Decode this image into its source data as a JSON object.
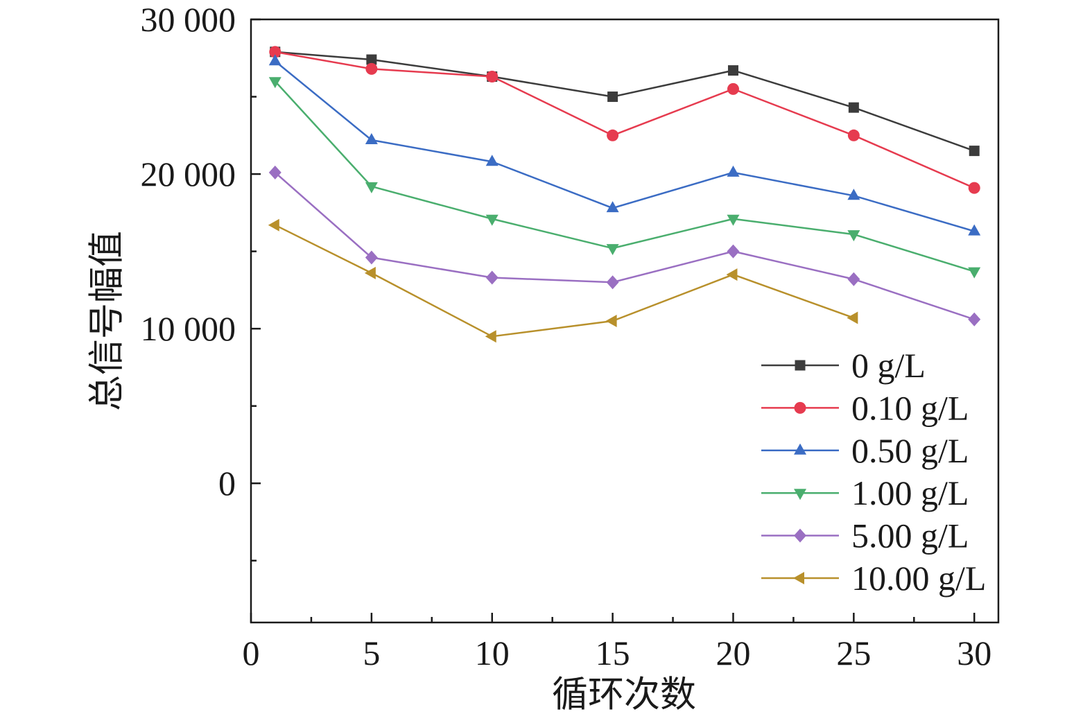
{
  "chart_data": {
    "type": "line",
    "xlabel": "循环次数",
    "ylabel": "总信号幅值",
    "xlim": [
      0,
      31
    ],
    "ylim": [
      -9000,
      30000
    ],
    "x_ticks": [
      0,
      5,
      10,
      15,
      20,
      25,
      30
    ],
    "x_tick_labels": [
      "0",
      "5",
      "10",
      "15",
      "20",
      "25",
      "30"
    ],
    "x_minor_ticks": [
      2.5,
      7.5,
      12.5,
      17.5,
      22.5,
      27.5
    ],
    "y_ticks": [
      0,
      10000,
      20000,
      30000
    ],
    "y_tick_labels": [
      "0",
      "10 000",
      "20 000",
      "30 000"
    ],
    "y_minor_ticks": [
      -5000,
      5000,
      15000,
      25000
    ],
    "grid": false,
    "legend_position": "lower-right",
    "series": [
      {
        "name": "0 g/L",
        "color": "#3c3c3c",
        "marker": "square",
        "x": [
          1,
          5,
          10,
          15,
          20,
          25,
          30
        ],
        "y": [
          27900,
          27400,
          26300,
          25000,
          26700,
          24300,
          21500
        ]
      },
      {
        "name": "0.10 g/L",
        "color": "#e63b4f",
        "marker": "circle",
        "x": [
          1,
          5,
          10,
          15,
          20,
          25,
          30
        ],
        "y": [
          27900,
          26800,
          26300,
          22500,
          25500,
          22500,
          19100
        ]
      },
      {
        "name": "0.50 g/L",
        "color": "#3b6cc4",
        "marker": "triangle-up",
        "x": [
          1,
          5,
          10,
          15,
          20,
          25,
          30
        ],
        "y": [
          27300,
          22200,
          20800,
          17800,
          20100,
          18600,
          16300
        ]
      },
      {
        "name": "1.00 g/L",
        "color": "#4aae6e",
        "marker": "triangle-down",
        "x": [
          1,
          5,
          10,
          15,
          20,
          25,
          30
        ],
        "y": [
          26000,
          19200,
          17100,
          15200,
          17100,
          16100,
          13700
        ]
      },
      {
        "name": "5.00 g/L",
        "color": "#9a6fc2",
        "marker": "diamond",
        "x": [
          1,
          5,
          10,
          15,
          20,
          25,
          30
        ],
        "y": [
          20100,
          14600,
          13300,
          13000,
          15000,
          13200,
          10600
        ]
      },
      {
        "name": "10.00 g/L",
        "color": "#b8902b",
        "marker": "triangle-left",
        "x": [
          1,
          5,
          10,
          15,
          20,
          25
        ],
        "y": [
          16700,
          13600,
          9500,
          10500,
          13500,
          10700
        ]
      }
    ]
  }
}
